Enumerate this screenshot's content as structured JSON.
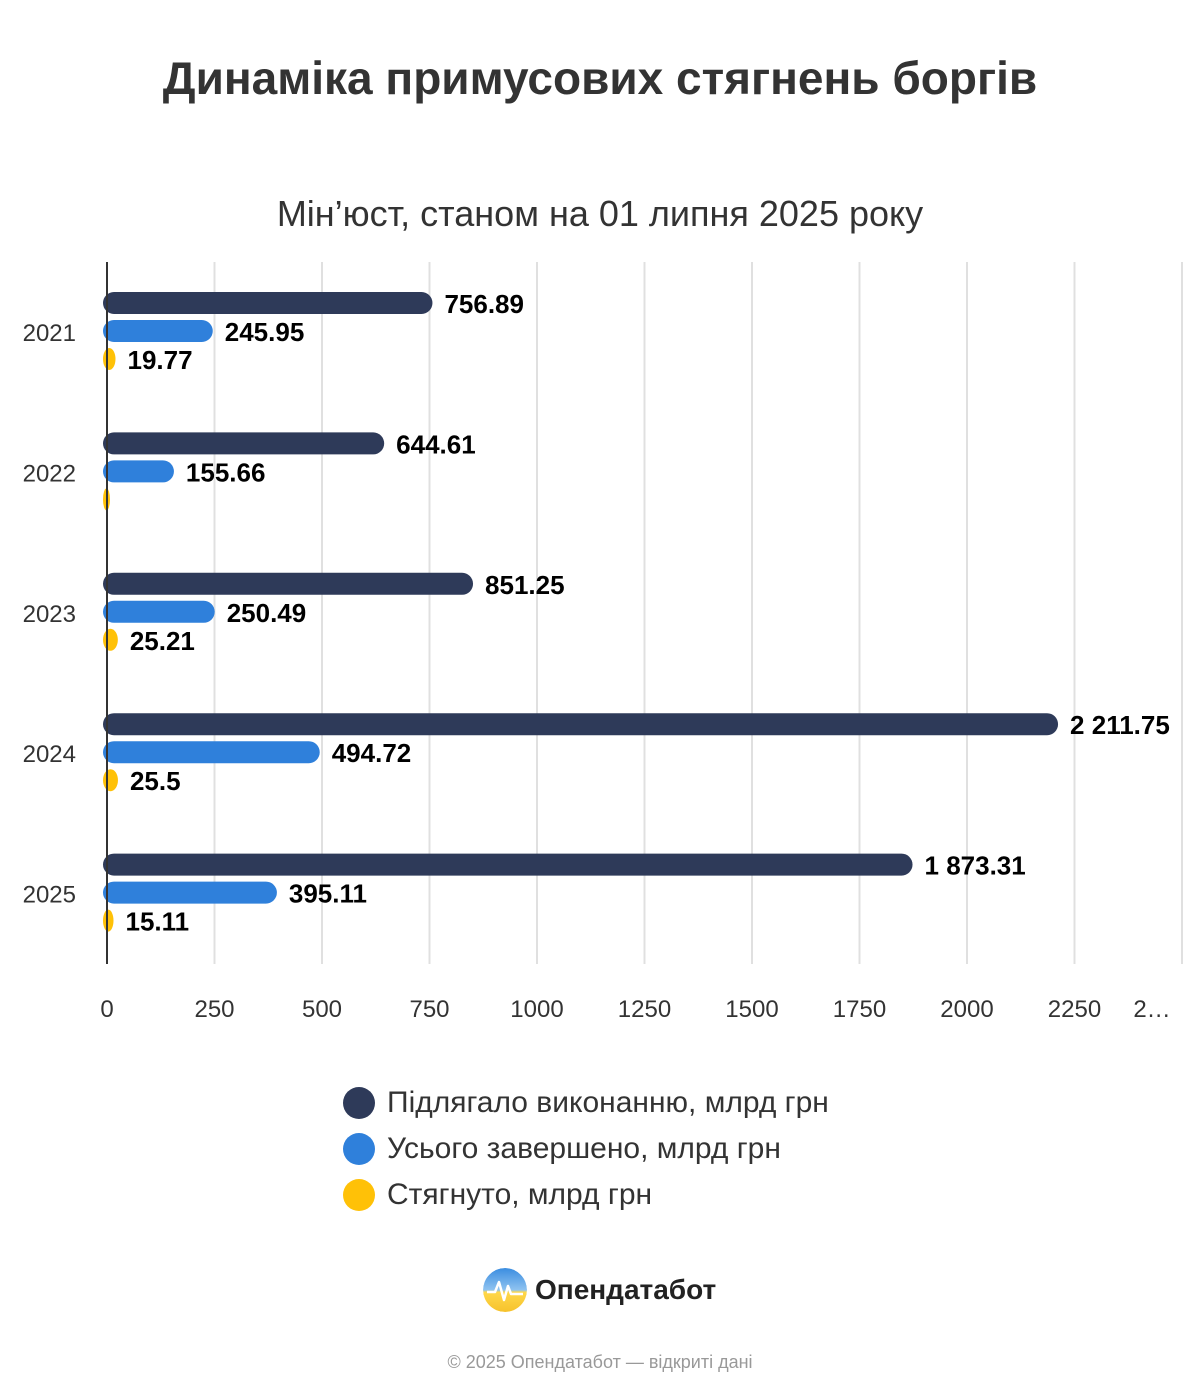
{
  "chart_data": {
    "type": "bar",
    "orientation": "horizontal",
    "title": "Динаміка примусових стягнень боргів",
    "subtitle": "Мін’юст, станом на 01 липня 2025 року",
    "categories": [
      "2021",
      "2022",
      "2023",
      "2024",
      "2025"
    ],
    "series": [
      {
        "name": "Підлягало виконанню, млрд грн",
        "color": "#2e3a59",
        "values": [
          756.89,
          644.61,
          851.25,
          2211.75,
          1873.31
        ],
        "labels": [
          "756.89",
          "644.61",
          "851.25",
          "2 211.75",
          "1 873.31"
        ]
      },
      {
        "name": "Усього завершено, млрд грн",
        "color": "#2f80db",
        "values": [
          245.95,
          155.66,
          250.49,
          494.72,
          395.11
        ],
        "labels": [
          "245.95",
          "155.66",
          "250.49",
          "494.72",
          "395.11"
        ]
      },
      {
        "name": "Стягнуто, млрд грн",
        "color": "#ffc107",
        "values": [
          19.77,
          null,
          25.21,
          25.5,
          15.11
        ],
        "labels": [
          "19.77",
          "",
          "25.21",
          "25.5",
          "15.11"
        ]
      }
    ],
    "xticks": [
      "0",
      "250",
      "500",
      "750",
      "1000",
      "1250",
      "1500",
      "1750",
      "2000",
      "2250",
      "2…"
    ],
    "xlim": [
      0,
      2500
    ],
    "grid": true,
    "legend": "bottom-center"
  },
  "brand": {
    "name": "Опендатабот"
  },
  "footer": {
    "text": "© 2025 Опендатабот — відкриті дані"
  },
  "colors": {
    "axis": "#333333",
    "grid": "#e0e0e0"
  }
}
